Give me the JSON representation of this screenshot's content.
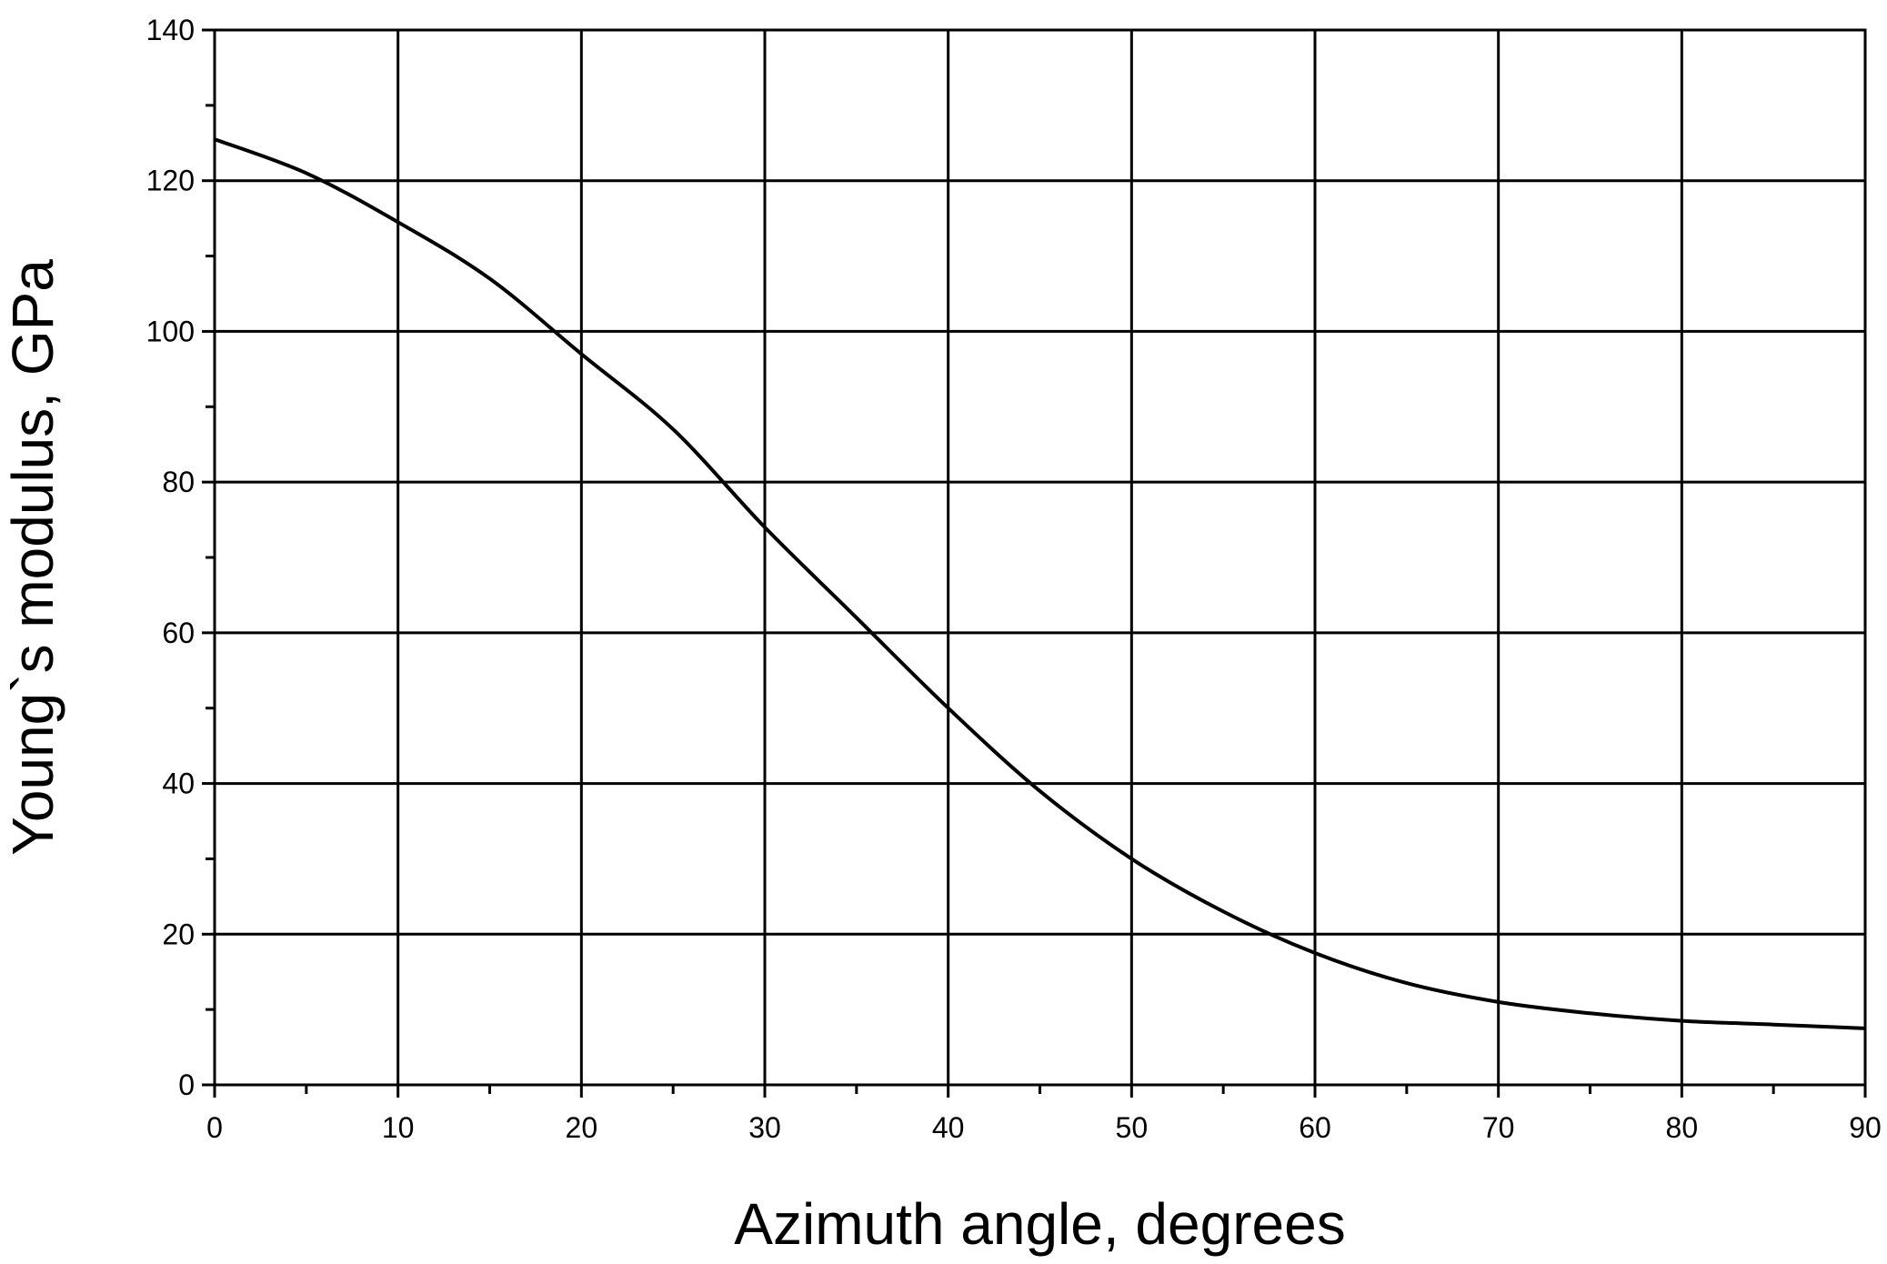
{
  "chart_data": {
    "type": "line",
    "title": "",
    "xlabel": "Azimuth angle, degrees",
    "ylabel": "Young`s modulus, GPa",
    "xlim": [
      0,
      90
    ],
    "ylim": [
      0,
      140
    ],
    "xticks": [
      0,
      10,
      20,
      30,
      40,
      50,
      60,
      70,
      80,
      90
    ],
    "yticks": [
      0,
      20,
      40,
      60,
      80,
      100,
      120,
      140
    ],
    "grid": true,
    "legend": "none",
    "line_color": "#000000",
    "series": [
      {
        "x": [
          0,
          5,
          10,
          15,
          20,
          25,
          30,
          35,
          40,
          45,
          50,
          55,
          60,
          65,
          70,
          75,
          80,
          85,
          90
        ],
        "values": [
          125.5,
          121,
          114.5,
          107,
          97,
          87,
          74,
          62,
          50,
          39,
          30,
          23,
          17.5,
          13.5,
          11,
          9.5,
          8.5,
          8,
          7.5
        ]
      }
    ]
  }
}
